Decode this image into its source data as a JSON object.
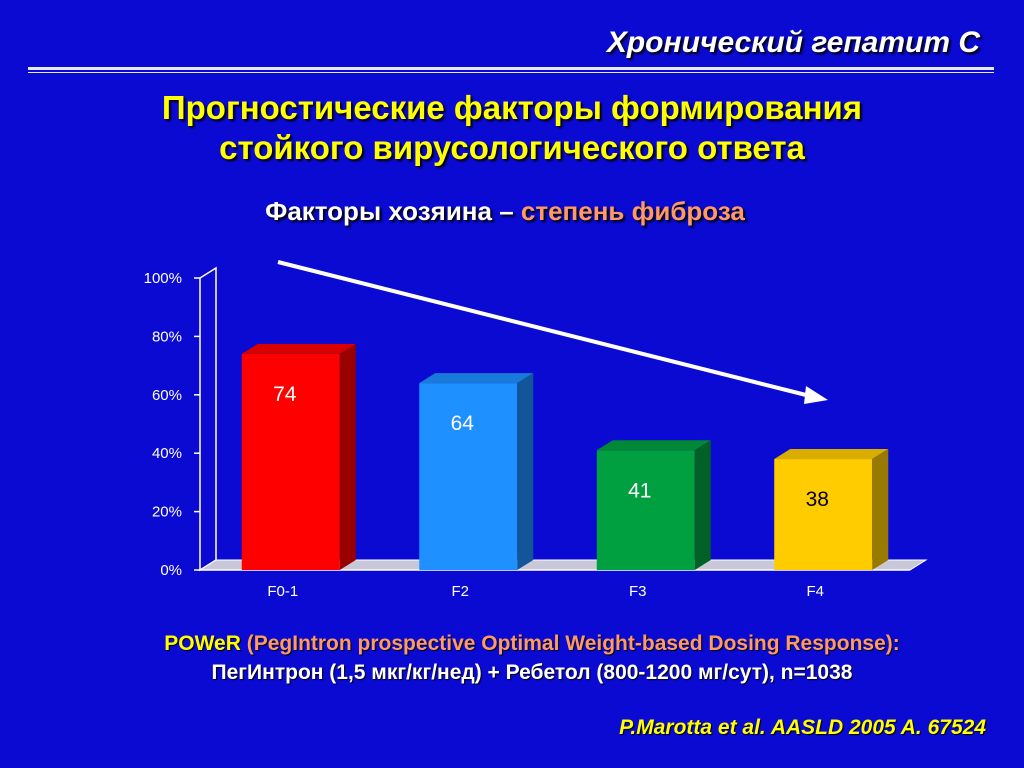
{
  "header": {
    "section_title": "Хронический гепатит С"
  },
  "title": {
    "line1": "Прогностические факторы формирования",
    "line2": "стойкого вирусологического ответа"
  },
  "subtitle": {
    "part1": "Факторы хозяина – ",
    "part2": "степень фиброза"
  },
  "chart_data": {
    "type": "bar",
    "categories": [
      "F0-1",
      "F2",
      "F3",
      "F4"
    ],
    "values": [
      74,
      64,
      41,
      38
    ],
    "value_labels": [
      "74",
      "64",
      "41",
      "38"
    ],
    "colors": [
      "#ff0000",
      "#1e90ff",
      "#00a040",
      "#ffcc00"
    ],
    "label_colors": [
      "#ffffff",
      "#ffffff",
      "#ffffff",
      "#000000"
    ],
    "ylim": [
      0,
      100
    ],
    "y_ticks": [
      "0%",
      "20%",
      "40%",
      "60%",
      "80%",
      "100%"
    ],
    "y_tick_values": [
      0,
      20,
      40,
      60,
      80,
      100
    ],
    "grid": false,
    "annotation": "trend arrow pointing down-right"
  },
  "footer": {
    "acronym": "POWeR",
    "study_expansion": " (PegIntron prospective Optimal Weight-based Dosing Response):",
    "regimen": "ПегИнтрон (1,5 мкг/кг/нед) + Ребетол (800-1200 мг/сут), n=1038",
    "citation": "P.Marotta et al. AASLD 2005 A. 67524"
  },
  "colors": {
    "background": "#0a0ad2",
    "title": "#ffff00",
    "highlight": "#ff9966"
  }
}
